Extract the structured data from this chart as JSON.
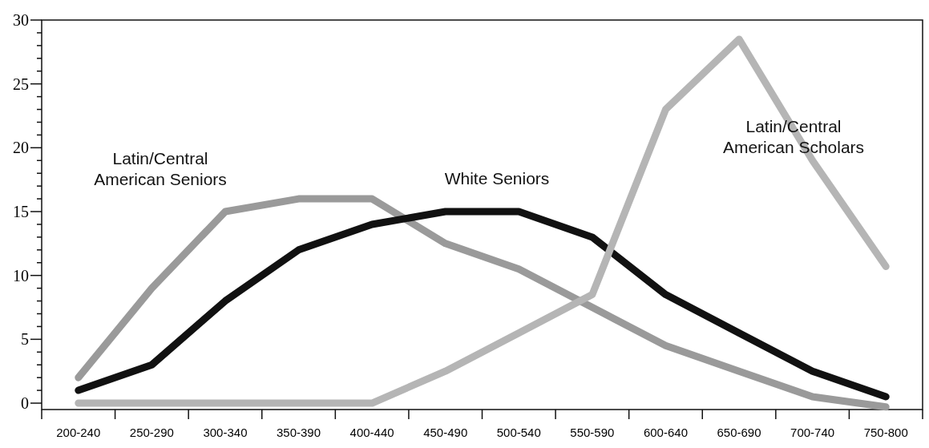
{
  "chart_data": {
    "type": "line",
    "categories": [
      "200-240",
      "250-290",
      "300-340",
      "350-390",
      "400-440",
      "450-490",
      "500-540",
      "550-590",
      "600-640",
      "650-690",
      "700-740",
      "750-800"
    ],
    "series": [
      {
        "name": "Latin/Central American Seniors",
        "color": "#9a9a9a",
        "values": [
          2,
          9,
          15,
          16,
          16,
          12.5,
          10.5,
          7.5,
          4.5,
          2.5,
          0.5,
          -0.3
        ]
      },
      {
        "name": "White Seniors",
        "color": "#111111",
        "values": [
          1,
          3,
          8,
          12,
          14,
          15,
          15,
          13,
          8.5,
          5.5,
          2.5,
          0.5
        ]
      },
      {
        "name": "Latin/Central American Scholars",
        "color": "#b5b5b5",
        "values": [
          0,
          0,
          0,
          0,
          0,
          2.5,
          5.5,
          8.5,
          23,
          28.5,
          19,
          10.7
        ]
      }
    ],
    "ylim": [
      -0.5,
      30
    ],
    "yticks": [
      0,
      {
        "value": 1,
        "label": null
      },
      {
        "value": 2,
        "label": null
      },
      {
        "value": 3,
        "label": null
      },
      {
        "value": 4,
        "label": null
      },
      5,
      {
        "value": 6,
        "label": null
      },
      {
        "value": 7,
        "label": null
      },
      {
        "value": 8,
        "label": null
      },
      {
        "value": 9,
        "label": null
      },
      10,
      {
        "value": 11,
        "label": null
      },
      {
        "value": 12,
        "label": null
      },
      {
        "value": 13,
        "label": null
      },
      {
        "value": 14,
        "label": null
      },
      15,
      {
        "value": 16,
        "label": null
      },
      {
        "value": 17,
        "label": null
      },
      {
        "value": 18,
        "label": null
      },
      {
        "value": 19,
        "label": null
      },
      20,
      {
        "value": 21,
        "label": null
      },
      {
        "value": 22,
        "label": null
      },
      {
        "value": 23,
        "label": null
      },
      {
        "value": 24,
        "label": null
      },
      25,
      {
        "value": 26,
        "label": null
      },
      {
        "value": 27,
        "label": null
      },
      {
        "value": 28,
        "label": null
      },
      {
        "value": 29,
        "label": null
      },
      30
    ],
    "grid": false,
    "marker": "none",
    "line_style": "solid"
  }
}
